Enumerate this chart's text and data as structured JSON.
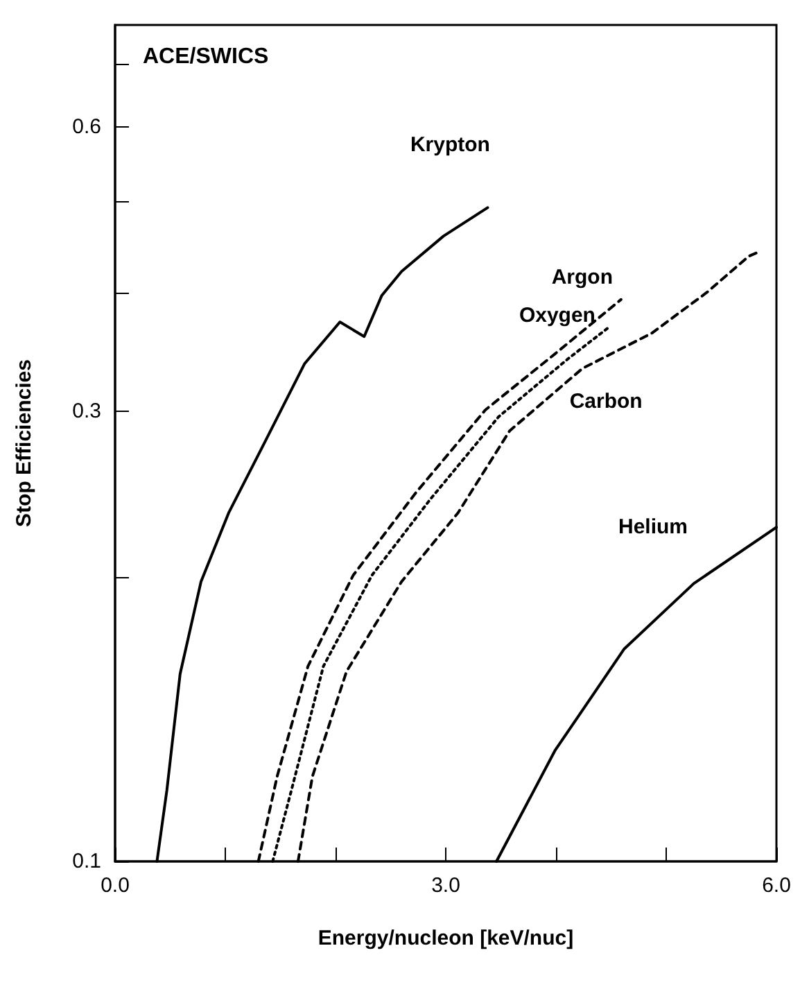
{
  "chart_data": {
    "type": "line",
    "title": "ACE/SWICS",
    "xlabel": "Energy/nucleon [keV/nuc]",
    "ylabel": "Stop Efficiencies",
    "log": "y",
    "grid": false,
    "marker": "none",
    "xlim": [
      0,
      6
    ],
    "xticks": [
      {
        "value": 0,
        "label": "0.0"
      },
      {
        "value": 1,
        "label": null
      },
      {
        "value": 2,
        "label": null
      },
      {
        "value": 3,
        "label": "3.0"
      },
      {
        "value": 4,
        "label": null
      },
      {
        "value": 5,
        "label": null
      },
      {
        "value": 6,
        "label": "6.0"
      }
    ],
    "ylim": [
      0.1,
      0.77
    ],
    "yticks": [
      0.1,
      {
        "value": 0.2,
        "label": null
      },
      0.3,
      {
        "value": 0.4,
        "label": null
      },
      {
        "value": 0.5,
        "label": null
      },
      0.6,
      {
        "value": 0.7,
        "label": null
      }
    ],
    "series": [
      {
        "name": "Krypton",
        "color": "#000000",
        "line_style": "solid",
        "x": [
          0.38,
          0.47,
          0.59,
          0.78,
          1.03,
          1.35,
          1.72,
          2.04,
          2.26,
          2.42,
          2.6,
          2.98,
          3.38
        ],
        "values": [
          0.1,
          0.119,
          0.158,
          0.198,
          0.234,
          0.277,
          0.337,
          0.373,
          0.36,
          0.398,
          0.422,
          0.46,
          0.493
        ]
      },
      {
        "name": "Argon",
        "color": "#000000",
        "line_style": "dashed",
        "x": [
          1.3,
          1.47,
          1.75,
          2.16,
          2.73,
          3.36,
          3.99,
          4.59
        ],
        "values": [
          0.1,
          0.123,
          0.161,
          0.201,
          0.246,
          0.301,
          0.345,
          0.394
        ]
      },
      {
        "name": "Oxygen",
        "color": "#000000",
        "line_style": "dotted",
        "x": [
          1.43,
          1.6,
          1.89,
          2.33,
          2.86,
          3.48,
          4.11,
          4.49
        ],
        "values": [
          0.1,
          0.119,
          0.161,
          0.201,
          0.242,
          0.296,
          0.341,
          0.369
        ]
      },
      {
        "name": "Carbon",
        "color": "#000000",
        "line_style": "dashed",
        "x": [
          1.66,
          1.79,
          2.1,
          2.6,
          3.11,
          3.58,
          4.24,
          4.87,
          5.37,
          5.75,
          5.85
        ],
        "values": [
          0.1,
          0.123,
          0.159,
          0.198,
          0.234,
          0.286,
          0.333,
          0.363,
          0.401,
          0.438,
          0.443
        ]
      },
      {
        "name": "Helium",
        "color": "#000000",
        "line_style": "solid",
        "x": [
          3.46,
          3.99,
          4.62,
          5.25,
          6.0
        ],
        "values": [
          0.1,
          0.131,
          0.168,
          0.197,
          0.226
        ]
      }
    ]
  }
}
